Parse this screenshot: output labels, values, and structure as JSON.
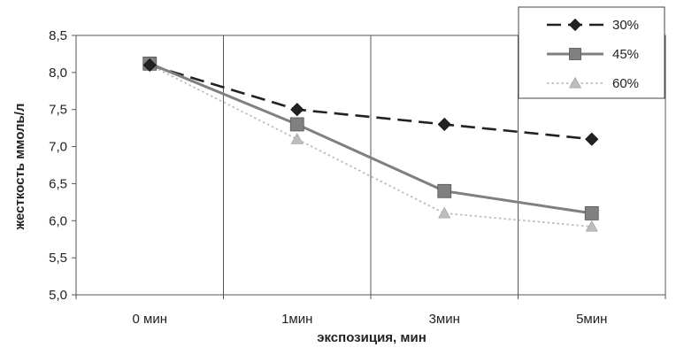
{
  "chart_data": {
    "type": "line",
    "categories": [
      "0 мин",
      "1мин",
      "3мин",
      "5мин"
    ],
    "xlabel": "экспозиция, мин",
    "ylabel": "жесткость ммоль/л",
    "ylim": [
      5.0,
      8.5
    ],
    "yticks": [
      "5,0",
      "5,5",
      "6,0",
      "6,5",
      "7,0",
      "7,5",
      "8,0",
      "8,5"
    ],
    "ytick_values": [
      5.0,
      5.5,
      6.0,
      6.5,
      7.0,
      7.5,
      8.0,
      8.5
    ],
    "grid": "vertical",
    "legend_position": "top-right",
    "series": [
      {
        "name": "30%",
        "values": [
          8.1,
          7.5,
          7.3,
          7.1
        ],
        "style": "dashed",
        "marker": "diamond",
        "color": "#222222"
      },
      {
        "name": "45%",
        "values": [
          8.12,
          7.3,
          6.4,
          6.1
        ],
        "style": "solid",
        "marker": "square",
        "color": "#808080"
      },
      {
        "name": "60%",
        "values": [
          8.1,
          7.1,
          6.1,
          5.92
        ],
        "style": "dotted",
        "marker": "triangle",
        "color": "#bdbdbd"
      }
    ]
  }
}
